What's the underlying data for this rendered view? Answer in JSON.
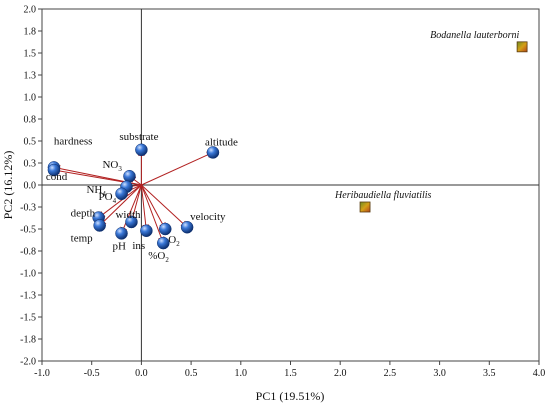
{
  "chart_data": {
    "type": "scatter",
    "title": "",
    "xlabel": "PC1 (19.51%)",
    "ylabel": "PC2 (16.12%)",
    "xlim": [
      -1.0,
      4.0
    ],
    "ylim": [
      -2.0,
      2.0
    ],
    "xticks": [
      "-1.0",
      "-0.5",
      "0.0",
      "0.5",
      "1.0",
      "1.5",
      "2.0",
      "2.5",
      "3.0",
      "3.5",
      "4.0"
    ],
    "yticks": [
      "2.0",
      "1.8",
      "1.5",
      "1.3",
      "1.0",
      "0.8",
      "0.5",
      "0.3",
      "0.0",
      "-0.3",
      "-0.5",
      "-0.8",
      "-1.0",
      "-1.3",
      "-1.5",
      "-1.8",
      "-2.0"
    ],
    "grid": false,
    "arrow_color": "#b22222",
    "point_color": "#2a5fb4",
    "species_color": "#b5651d",
    "variables": [
      {
        "name": "hardness",
        "label": "hardness",
        "sub": "",
        "x": -0.88,
        "y": 0.2
      },
      {
        "name": "cond",
        "label": "cond",
        "sub": "",
        "x": -0.88,
        "y": 0.17
      },
      {
        "name": "NO3",
        "label": "NO",
        "sub": "3",
        "x": -0.12,
        "y": 0.1
      },
      {
        "name": "NH4",
        "label": "NH",
        "sub": "4",
        "x": -0.15,
        "y": -0.02
      },
      {
        "name": "PO4",
        "label": "PO",
        "sub": "4",
        "x": -0.2,
        "y": -0.1
      },
      {
        "name": "substrate",
        "label": "substrate",
        "sub": "",
        "x": 0.0,
        "y": 0.4
      },
      {
        "name": "altitude",
        "label": "altitude",
        "sub": "",
        "x": 0.72,
        "y": 0.37
      },
      {
        "name": "depth",
        "label": "depth",
        "sub": "",
        "x": -0.43,
        "y": -0.37
      },
      {
        "name": "temp",
        "label": "temp",
        "sub": "",
        "x": -0.42,
        "y": -0.46
      },
      {
        "name": "width",
        "label": "width",
        "sub": "",
        "x": -0.1,
        "y": -0.42
      },
      {
        "name": "pH",
        "label": "pH",
        "sub": "",
        "x": -0.2,
        "y": -0.55
      },
      {
        "name": "ins",
        "label": "ins",
        "sub": "",
        "x": 0.05,
        "y": -0.52
      },
      {
        "name": "O2",
        "label": "O",
        "sub": "2",
        "x": 0.24,
        "y": -0.5
      },
      {
        "name": "pctO2",
        "label": "%O",
        "sub": "2",
        "x": 0.22,
        "y": -0.66
      },
      {
        "name": "velocity",
        "label": "velocity",
        "sub": "",
        "x": 0.46,
        "y": -0.48
      }
    ],
    "species": [
      {
        "name": "Bodanella lauterborni",
        "x": 3.83,
        "y": 1.57
      },
      {
        "name": "Heribaudiella fluviatilis",
        "x": 2.25,
        "y": -0.25
      }
    ]
  }
}
